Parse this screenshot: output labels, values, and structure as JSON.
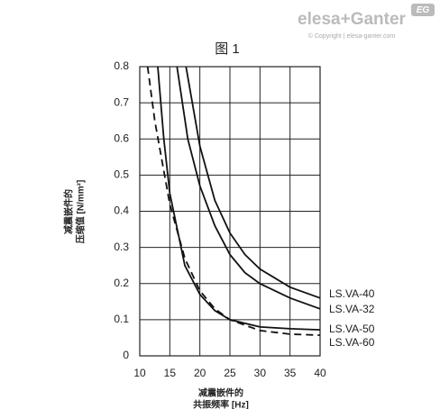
{
  "logo": {
    "brand": "elesa+Ganter",
    "copyright": "© Copyright | elesa-ganter.com",
    "badge": "EG"
  },
  "chart_data": {
    "type": "line",
    "title": "图 1",
    "xlabel": [
      "减震嵌件的",
      "共振频率 [Hz]"
    ],
    "ylabel": [
      "减震嵌件的",
      "压缩值 [N/mm²]"
    ],
    "xlim": [
      10,
      40
    ],
    "xticks": [
      10,
      15,
      20,
      25,
      30,
      35,
      40
    ],
    "ylim": [
      0,
      0.8
    ],
    "yticks": [
      0,
      0.1,
      0.2,
      0.3,
      0.4,
      0.5,
      0.6,
      0.7,
      0.8
    ],
    "grid": true,
    "series": [
      {
        "name": "LS.VA-40",
        "color": "#111111",
        "dash": false,
        "x": [
          17.7,
          20,
          22.5,
          25,
          27.5,
          30,
          35,
          40
        ],
        "values": [
          0.8,
          0.58,
          0.43,
          0.34,
          0.28,
          0.24,
          0.19,
          0.16
        ]
      },
      {
        "name": "LS.VA-32",
        "color": "#111111",
        "dash": false,
        "x": [
          16.2,
          18,
          20,
          22.5,
          25,
          27.5,
          30,
          35,
          40
        ],
        "values": [
          0.8,
          0.6,
          0.47,
          0.36,
          0.28,
          0.23,
          0.2,
          0.16,
          0.13
        ]
      },
      {
        "name": "LS.VA-50",
        "color": "#111111",
        "dash": false,
        "x": [
          13,
          14,
          15,
          17.5,
          20,
          22.5,
          25,
          30,
          35,
          40
        ],
        "values": [
          0.8,
          0.6,
          0.45,
          0.25,
          0.17,
          0.125,
          0.1,
          0.08,
          0.075,
          0.072
        ]
      },
      {
        "name": "LS.VA-60",
        "color": "#111111",
        "dash": true,
        "x": [
          11.3,
          12.5,
          15,
          17.5,
          20,
          22.5,
          25,
          30,
          35,
          40
        ],
        "values": [
          0.8,
          0.65,
          0.42,
          0.27,
          0.18,
          0.13,
          0.1,
          0.07,
          0.06,
          0.057
        ]
      }
    ]
  }
}
